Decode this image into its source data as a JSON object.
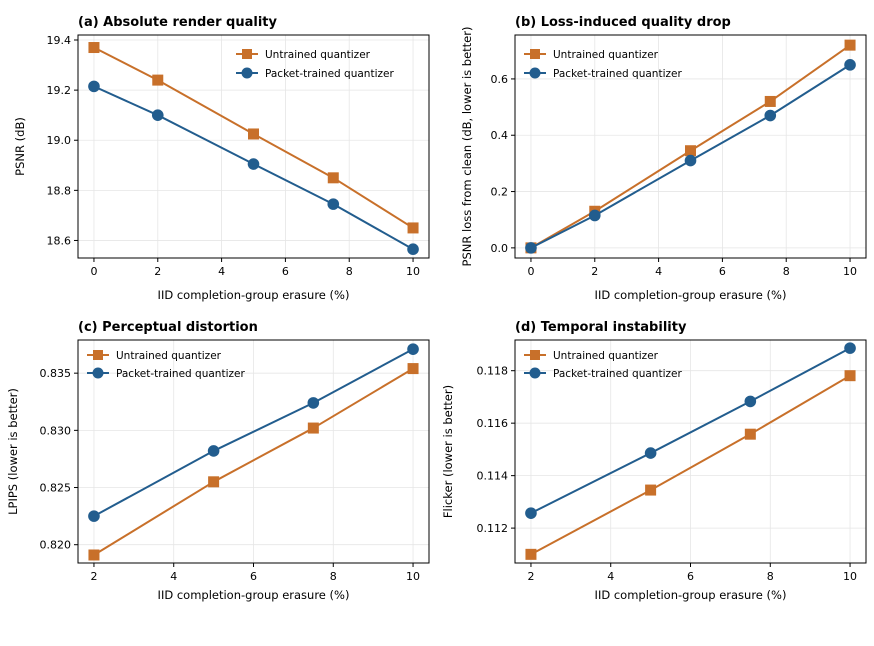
{
  "colors": {
    "untrained": "#c8702a",
    "packet": "#225d8e",
    "grid": "#e6e6e6"
  },
  "chart_data": [
    {
      "type": "line",
      "title": "(a) Absolute render quality",
      "xlabel": "IID completion-group erasure (%)",
      "ylabel": "PSNR (dB)",
      "xlim": [
        -0.5,
        10.5
      ],
      "ylim": [
        18.53,
        19.42
      ],
      "xticks": [
        0,
        2,
        4,
        6,
        8,
        10
      ],
      "xticklabels": [
        "0",
        "2",
        "4",
        "6",
        "8",
        "10"
      ],
      "yticks": [
        18.6,
        18.8,
        19.0,
        19.2,
        19.4
      ],
      "yticklabels": [
        "18.6",
        "18.8",
        "19.0",
        "19.2",
        "19.4"
      ],
      "legend": "top-right",
      "grid": true,
      "series": [
        {
          "name": "Untrained quantizer",
          "marker": "square",
          "color": "#c8702a",
          "x": [
            0,
            2,
            5,
            7.5,
            10
          ],
          "y": [
            19.37,
            19.24,
            19.025,
            18.85,
            18.65
          ]
        },
        {
          "name": "Packet-trained quantizer",
          "marker": "circle",
          "color": "#225d8e",
          "x": [
            0,
            2,
            5,
            7.5,
            10
          ],
          "y": [
            19.215,
            19.1,
            18.905,
            18.745,
            18.565
          ]
        }
      ]
    },
    {
      "type": "line",
      "title": "(b) Loss-induced quality drop",
      "xlabel": "IID completion-group erasure (%)",
      "ylabel": "PSNR loss from clean (dB, lower is better)",
      "xlim": [
        -0.5,
        10.5
      ],
      "ylim": [
        -0.036,
        0.756
      ],
      "xticks": [
        0,
        2,
        4,
        6,
        8,
        10
      ],
      "xticklabels": [
        "0",
        "2",
        "4",
        "6",
        "8",
        "10"
      ],
      "yticks": [
        0.0,
        0.2,
        0.4,
        0.6
      ],
      "yticklabels": [
        "0.0",
        "0.2",
        "0.4",
        "0.6"
      ],
      "legend": "top-left",
      "grid": true,
      "series": [
        {
          "name": "Untrained quantizer",
          "marker": "square",
          "color": "#c8702a",
          "x": [
            0,
            2,
            5,
            7.5,
            10
          ],
          "y": [
            0.0,
            0.13,
            0.345,
            0.52,
            0.72
          ]
        },
        {
          "name": "Packet-trained quantizer",
          "marker": "circle",
          "color": "#225d8e",
          "x": [
            0,
            2,
            5,
            7.5,
            10
          ],
          "y": [
            0.0,
            0.115,
            0.31,
            0.47,
            0.65
          ]
        }
      ]
    },
    {
      "type": "line",
      "title": "(c) Perceptual distortion",
      "xlabel": "IID completion-group erasure (%)",
      "ylabel": "LPIPS (lower is better)",
      "xlim": [
        1.6,
        10.4
      ],
      "ylim": [
        0.8184,
        0.8379
      ],
      "xticks": [
        2,
        4,
        6,
        8,
        10
      ],
      "xticklabels": [
        "2",
        "4",
        "6",
        "8",
        "10"
      ],
      "yticks": [
        0.82,
        0.825,
        0.83,
        0.835
      ],
      "yticklabels": [
        "0.820",
        "0.825",
        "0.830",
        "0.835"
      ],
      "legend": "top-left",
      "grid": true,
      "series": [
        {
          "name": "Untrained quantizer",
          "marker": "square",
          "color": "#c8702a",
          "x": [
            2,
            5,
            7.5,
            10
          ],
          "y": [
            0.8191,
            0.8255,
            0.8302,
            0.8354
          ]
        },
        {
          "name": "Packet-trained quantizer",
          "marker": "circle",
          "color": "#225d8e",
          "x": [
            2,
            5,
            7.5,
            10
          ],
          "y": [
            0.8225,
            0.8282,
            0.8324,
            0.8371
          ]
        }
      ]
    },
    {
      "type": "line",
      "title": "(d) Temporal instability",
      "xlabel": "IID completion-group erasure (%)",
      "ylabel": "Flicker (lower is better)",
      "xlim": [
        1.6,
        10.4
      ],
      "ylim": [
        0.11067,
        0.11917
      ],
      "xticks": [
        2,
        4,
        6,
        8,
        10
      ],
      "xticklabels": [
        "2",
        "4",
        "6",
        "8",
        "10"
      ],
      "yticks": [
        0.112,
        0.114,
        0.116,
        0.118
      ],
      "yticklabels": [
        "0.112",
        "0.114",
        "0.116",
        "0.118"
      ],
      "legend": "top-left",
      "grid": true,
      "series": [
        {
          "name": "Untrained quantizer",
          "marker": "square",
          "color": "#c8702a",
          "x": [
            2,
            5,
            7.5,
            10
          ],
          "y": [
            0.111,
            0.11345,
            0.11558,
            0.11781
          ]
        },
        {
          "name": "Packet-trained quantizer",
          "marker": "circle",
          "color": "#225d8e",
          "x": [
            2,
            5,
            7.5,
            10
          ],
          "y": [
            0.11257,
            0.11486,
            0.11683,
            0.11886
          ]
        }
      ]
    }
  ]
}
